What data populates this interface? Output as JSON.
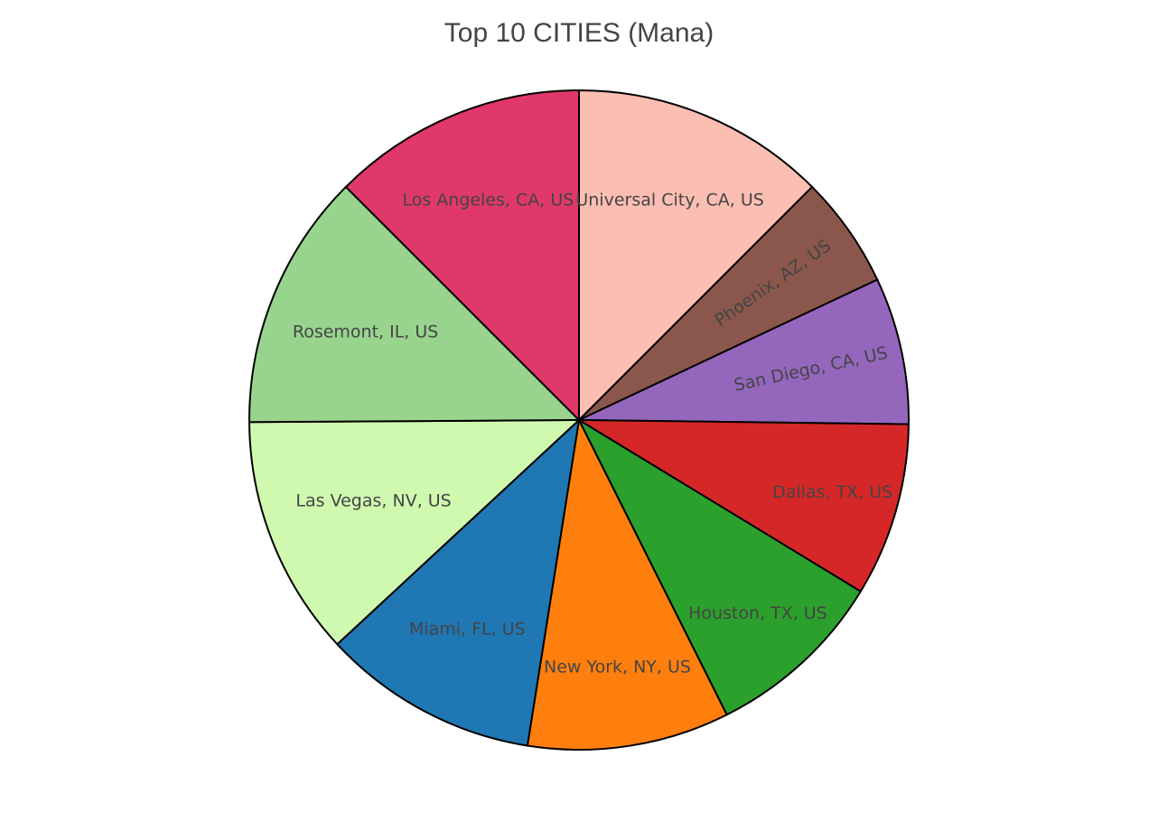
{
  "chart_data": {
    "type": "pie",
    "title": "Top 10 CITIES (Mana)",
    "direction": "clockwise",
    "start": "12 o'clock",
    "slices": [
      {
        "label": "Universal City, CA, US",
        "value": 12.5,
        "color": "#fbbeb2"
      },
      {
        "label": "Phoenix, AZ, US",
        "value": 5.5,
        "color": "#8b574c"
      },
      {
        "label": "San Diego, CA, US",
        "value": 7.2,
        "color": "#9467bd"
      },
      {
        "label": "Dallas, TX, US",
        "value": 8.5,
        "color": "#d62728"
      },
      {
        "label": "Houston, TX, US",
        "value": 8.9,
        "color": "#2ca02c"
      },
      {
        "label": "New York, NY, US",
        "value": 9.9,
        "color": "#ff7f0e"
      },
      {
        "label": "Miami, FL, US",
        "value": 10.6,
        "color": "#1f77b4"
      },
      {
        "label": "Las Vegas, NV, US",
        "value": 11.8,
        "color": "#d0f9b0"
      },
      {
        "label": "Rosemont, IL, US",
        "value": 12.6,
        "color": "#98d48d"
      },
      {
        "label": "Los Angeles, CA, US",
        "value": 12.5,
        "color": "#e0386b"
      }
    ]
  }
}
